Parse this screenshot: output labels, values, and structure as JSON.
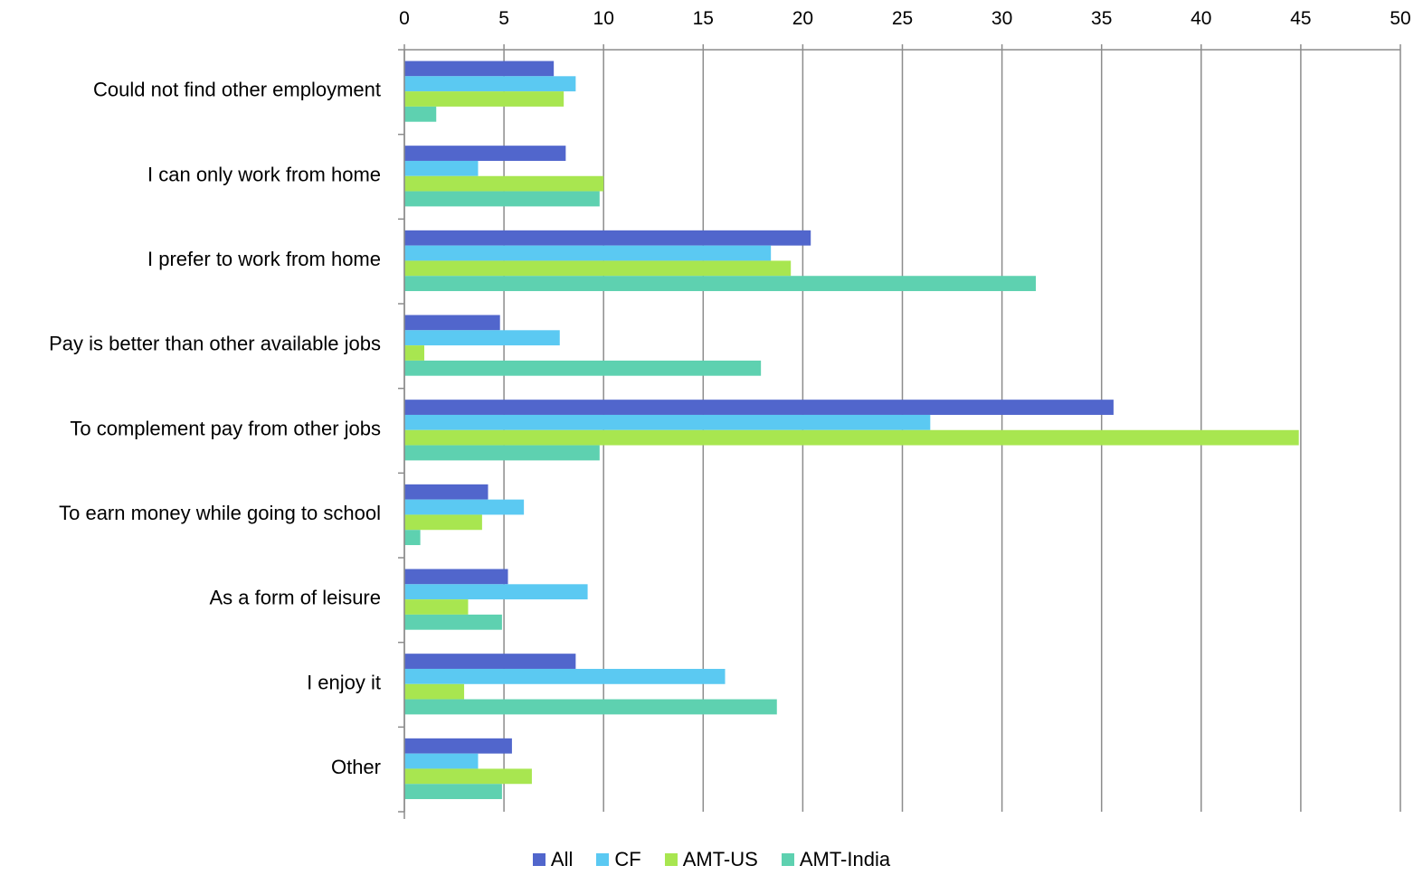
{
  "chart_data": {
    "type": "bar",
    "orientation": "horizontal",
    "categories": [
      "Could not find other employment",
      "I can only work from home",
      "I prefer to work from home",
      "Pay is better than other available jobs",
      "To complement pay from other jobs",
      "To earn money while going to school",
      "As a form of leisure",
      "I enjoy it",
      "Other"
    ],
    "series": [
      {
        "name": "All",
        "color": "#5166CC",
        "values": [
          7.5,
          8.1,
          20.4,
          4.8,
          35.6,
          4.2,
          5.2,
          8.6,
          5.4
        ]
      },
      {
        "name": "CF",
        "color": "#5BC9F2",
        "values": [
          8.6,
          3.7,
          18.4,
          7.8,
          26.4,
          6.0,
          9.2,
          16.1,
          3.7
        ]
      },
      {
        "name": "AMT-US",
        "color": "#A8E650",
        "values": [
          8.0,
          10.0,
          19.4,
          1.0,
          44.9,
          3.9,
          3.2,
          3.0,
          6.4
        ]
      },
      {
        "name": "AMT-India",
        "color": "#5ED1B0",
        "values": [
          1.6,
          9.8,
          31.7,
          17.9,
          9.8,
          0.8,
          4.9,
          18.7,
          4.9
        ]
      }
    ],
    "xlim": [
      0,
      50
    ],
    "x_ticks": [
      0,
      5,
      10,
      15,
      20,
      25,
      30,
      35,
      40,
      45,
      50
    ],
    "x_axis_position": "top",
    "grid": true,
    "legend_position": "bottom",
    "title": "",
    "xlabel": "",
    "ylabel": ""
  }
}
